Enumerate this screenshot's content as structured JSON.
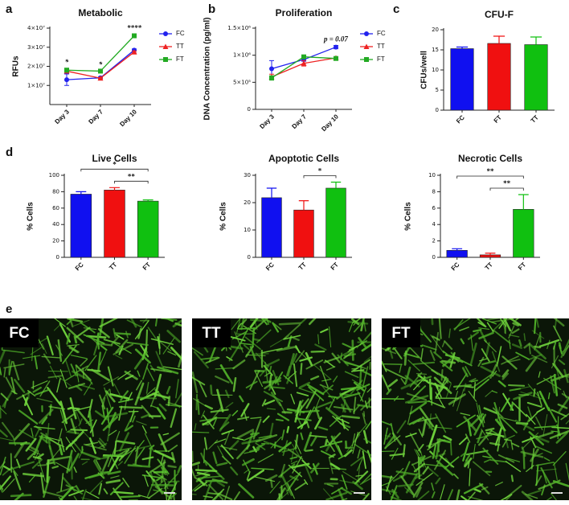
{
  "chart_data": [
    {
      "panel": "a",
      "type": "line",
      "title": "Metabolic",
      "y_label": "RFUs",
      "categories": [
        "Day 3",
        "Day 7",
        "Day 10"
      ],
      "series": [
        {
          "name": "FC",
          "color": "#2222ee",
          "marker": "circle",
          "values": [
            13000000,
            14000000,
            28500000
          ],
          "errors": [
            3000000,
            400000,
            600000
          ]
        },
        {
          "name": "TT",
          "color": "#ee2222",
          "marker": "triangle",
          "values": [
            17500000,
            13800000,
            27500000
          ],
          "errors": [
            1000000,
            300000,
            500000
          ]
        },
        {
          "name": "FT",
          "color": "#22aa22",
          "marker": "square",
          "values": [
            18000000,
            17500000,
            36000000
          ],
          "errors": [
            1000000,
            300000,
            800000
          ]
        }
      ],
      "ylim": [
        0,
        40000000
      ],
      "yticks": [
        {
          "value": 10000000,
          "label": "1×10⁷"
        },
        {
          "value": 20000000,
          "label": "2×10⁷"
        },
        {
          "value": 30000000,
          "label": "3×10⁷"
        },
        {
          "value": 40000000,
          "label": "4×10⁷"
        }
      ],
      "annotations": [
        {
          "series": "FT",
          "category": "Day 3",
          "text": "*"
        },
        {
          "series": "FT",
          "category": "Day 7",
          "text": "*"
        },
        {
          "series": "FT",
          "category": "Day 10",
          "text": "****"
        }
      ],
      "legend": "right"
    },
    {
      "panel": "b",
      "type": "line",
      "title": "Proliferation",
      "y_label": "DNA Concentration (pg/ml)",
      "categories": [
        "Day 3",
        "Day 7",
        "Day 10"
      ],
      "series": [
        {
          "name": "FC",
          "color": "#2222ee",
          "marker": "circle",
          "values": [
            750000,
            920000,
            1150000
          ],
          "errors": [
            150000,
            30000,
            30000
          ]
        },
        {
          "name": "TT",
          "color": "#ee2222",
          "marker": "triangle",
          "values": [
            600000,
            850000,
            950000
          ],
          "errors": [
            50000,
            50000,
            20000
          ]
        },
        {
          "name": "FT",
          "color": "#22aa22",
          "marker": "square",
          "values": [
            580000,
            970000,
            940000
          ],
          "errors": [
            40000,
            30000,
            20000
          ]
        }
      ],
      "ylim": [
        0,
        1500000
      ],
      "yticks": [
        0,
        {
          "value": 500000,
          "label": "5×10⁵"
        },
        {
          "value": 1000000,
          "label": "1×10⁶"
        },
        {
          "value": 1500000,
          "label": "1.5×10⁶"
        }
      ],
      "annotations": [
        {
          "series": "FC",
          "category": "Day 10",
          "text": "p = 0.07"
        }
      ],
      "legend": "right"
    },
    {
      "panel": "c",
      "type": "bar",
      "title": "CFU-F",
      "y_label": "CFUs/well",
      "categories": [
        "FC",
        "FT",
        "TT"
      ],
      "values": [
        15.3,
        16.6,
        16.3
      ],
      "errors": [
        0.4,
        1.8,
        1.9
      ],
      "colors": [
        "#1010f0",
        "#f01010",
        "#10c010"
      ],
      "ylim": [
        0,
        20
      ],
      "yticks": [
        0,
        5,
        10,
        15,
        20
      ],
      "significance": []
    },
    {
      "panel": "d",
      "type": "bar",
      "title": "Live Cells",
      "y_label": "% Cells",
      "categories": [
        "FC",
        "TT",
        "FT"
      ],
      "values": [
        77,
        82,
        68.5
      ],
      "errors": [
        3,
        3,
        1.5
      ],
      "colors": [
        "#1010f0",
        "#f01010",
        "#10c010"
      ],
      "ylim": [
        0,
        100
      ],
      "yticks": [
        0,
        20,
        40,
        60,
        80,
        100
      ],
      "significance": [
        {
          "between": [
            "FC",
            "FT"
          ],
          "label": "*"
        },
        {
          "between": [
            "TT",
            "FT"
          ],
          "label": "**"
        }
      ]
    },
    {
      "type": "bar",
      "title": "Apoptotic Cells",
      "y_label": "% Cells",
      "categories": [
        "FC",
        "TT",
        "FT"
      ],
      "values": [
        21.8,
        17.3,
        25.3
      ],
      "errors": [
        3.5,
        3.4,
        2.2
      ],
      "colors": [
        "#1010f0",
        "#f01010",
        "#10c010"
      ],
      "ylim": [
        0,
        30
      ],
      "yticks": [
        0,
        10,
        20,
        30
      ],
      "significance": [
        {
          "between": [
            "TT",
            "FT"
          ],
          "label": "*"
        }
      ]
    },
    {
      "type": "bar",
      "title": "Necrotic Cells",
      "y_label": "% Cells",
      "categories": [
        "FC",
        "TT",
        "FT"
      ],
      "values": [
        0.85,
        0.3,
        5.85
      ],
      "errors": [
        0.2,
        0.2,
        1.8
      ],
      "colors": [
        "#1010f0",
        "#f01010",
        "#10c010"
      ],
      "ylim": [
        0,
        10
      ],
      "yticks": [
        0,
        2,
        4,
        6,
        8,
        10
      ],
      "significance": [
        {
          "between": [
            "FC",
            "FT"
          ],
          "label": "**"
        },
        {
          "between": [
            "TT",
            "FT"
          ],
          "label": "**"
        }
      ]
    }
  ],
  "images": {
    "panel": "e",
    "labels": [
      "FC",
      "TT",
      "FT"
    ]
  }
}
